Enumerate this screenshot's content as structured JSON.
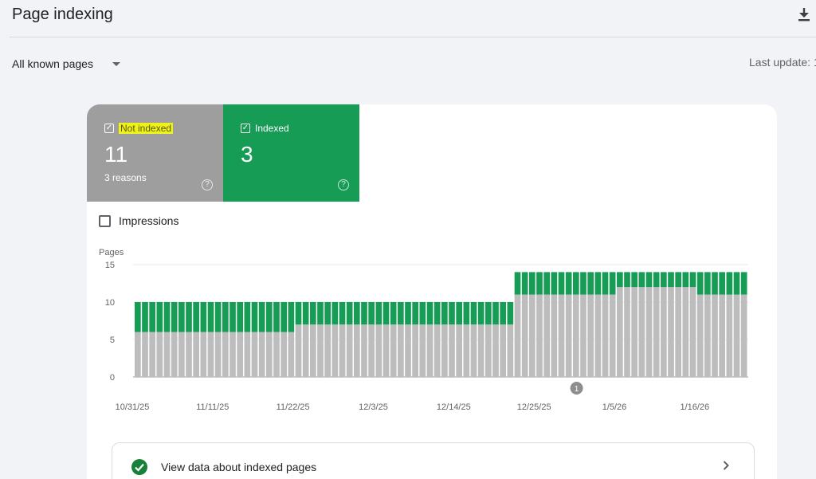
{
  "header": {
    "title": "Page indexing",
    "download_icon": "download-icon"
  },
  "filter": {
    "selected": "All known pages",
    "icon": "chevron-down-icon"
  },
  "last_update": "Last update: 1",
  "tiles": [
    {
      "label": "Not indexed",
      "value": "11",
      "sub": "3 reasons",
      "checked": true,
      "color": "#9e9e9e",
      "label_highlight": "#eef21a"
    },
    {
      "label": "Indexed",
      "value": "3",
      "sub": "",
      "checked": true,
      "color": "#169c55"
    }
  ],
  "impressions": {
    "label": "Impressions",
    "checked": false
  },
  "annotation": {
    "label": "1",
    "x_index": 60
  },
  "view_data": {
    "label": "View data about indexed pages"
  },
  "colors": {
    "not_indexed": "#bdbdbd",
    "indexed": "#169c55",
    "accent_green": "#188038"
  },
  "chart_data": {
    "type": "bar",
    "stacked": true,
    "ylabel": "Pages",
    "ylim": [
      0,
      15
    ],
    "yticks": [
      0,
      5,
      10,
      15
    ],
    "grid": true,
    "xtick_labels": [
      "10/31/25",
      "11/11/25",
      "11/22/25",
      "12/3/25",
      "12/14/25",
      "12/25/25",
      "1/5/26",
      "1/16/26"
    ],
    "xtick_positions": [
      0,
      11,
      22,
      33,
      44,
      55,
      66,
      77
    ],
    "segments": [
      {
        "count": 22,
        "not_indexed": 6,
        "indexed": 4
      },
      {
        "count": 30,
        "not_indexed": 7,
        "indexed": 3
      },
      {
        "count": 14,
        "not_indexed": 11,
        "indexed": 3
      },
      {
        "count": 11,
        "not_indexed": 12,
        "indexed": 2
      },
      {
        "count": 7,
        "not_indexed": 11,
        "indexed": 3
      }
    ],
    "series": [
      {
        "name": "Not indexed",
        "color": "#bdbdbd"
      },
      {
        "name": "Indexed",
        "color": "#169c55"
      }
    ]
  }
}
